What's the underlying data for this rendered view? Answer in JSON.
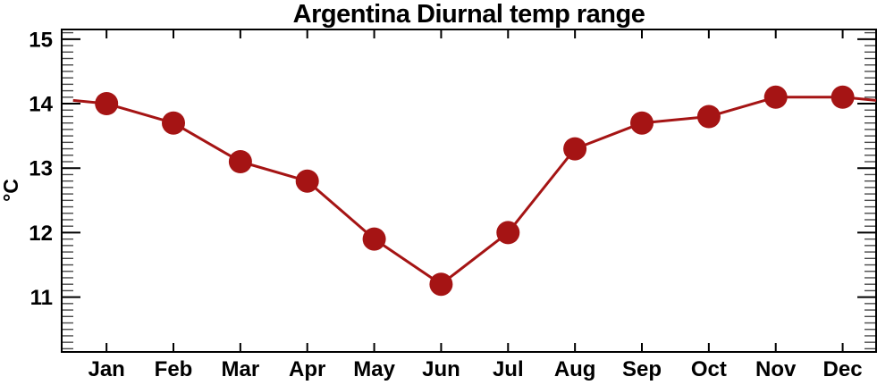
{
  "chart_data": {
    "type": "line",
    "title": "Argentina Diurnal temp range",
    "ylabel": "°C",
    "xlabel": "",
    "categories": [
      "Jan",
      "Feb",
      "Mar",
      "Apr",
      "May",
      "Jun",
      "Jul",
      "Aug",
      "Sep",
      "Oct",
      "Nov",
      "Dec"
    ],
    "values": [
      14.0,
      13.7,
      13.1,
      12.8,
      11.9,
      11.2,
      12.0,
      13.3,
      13.7,
      13.8,
      14.1,
      14.1
    ],
    "series_name": "Argentina diurnal temperature range",
    "ylim": [
      10.15,
      15.15
    ],
    "xlim_months": [
      0.33,
      12.5
    ],
    "y_major_ticks": [
      11,
      12,
      13,
      14,
      15
    ],
    "y_minor_step": 0.1,
    "line_wrap": {
      "start_month": 0.5,
      "start_value": 14.05,
      "end_month": 12.5,
      "end_value": 14.05
    },
    "grid": false,
    "legend": "none",
    "line_color": "#a51414",
    "marker": {
      "shape": "circle",
      "radius": 13,
      "color": "#a51414"
    },
    "frame_color": "#000000",
    "minor_tick_color": "#4a4a4a",
    "text_color": "#000000",
    "background_color": "#ffffff"
  }
}
